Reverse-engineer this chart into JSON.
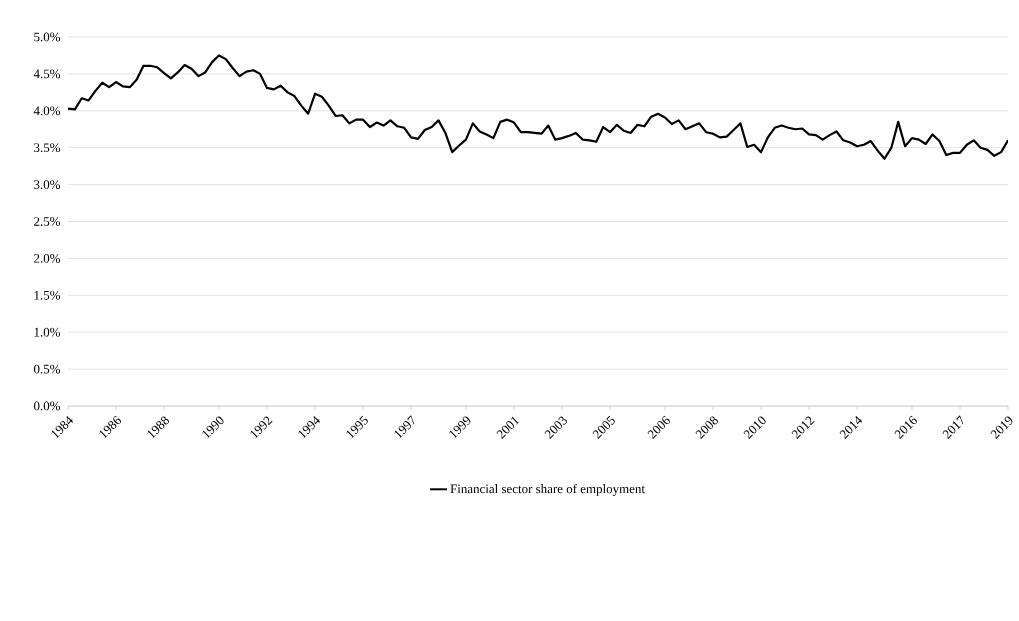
{
  "chart_data": {
    "type": "line",
    "categories": [
      "1984",
      null,
      null,
      null,
      null,
      null,
      null,
      "1986",
      null,
      null,
      null,
      null,
      null,
      null,
      "1988",
      null,
      null,
      null,
      null,
      null,
      null,
      null,
      "1990",
      null,
      null,
      null,
      null,
      null,
      null,
      "1992",
      null,
      null,
      null,
      null,
      null,
      null,
      "1994",
      null,
      null,
      null,
      null,
      null,
      null,
      "1995",
      null,
      null,
      null,
      null,
      null,
      null,
      "1997",
      null,
      null,
      null,
      null,
      null,
      null,
      null,
      "1999",
      null,
      null,
      null,
      null,
      null,
      null,
      "2001",
      null,
      null,
      null,
      null,
      null,
      null,
      "2003",
      null,
      null,
      null,
      null,
      null,
      null,
      "2005",
      null,
      null,
      null,
      null,
      null,
      null,
      null,
      "2006",
      null,
      null,
      null,
      null,
      null,
      null,
      "2008",
      null,
      null,
      null,
      null,
      null,
      null,
      "2010",
      null,
      null,
      null,
      null,
      null,
      null,
      "2012",
      null,
      null,
      null,
      null,
      null,
      null,
      "2014",
      null,
      null,
      null,
      null,
      null,
      null,
      null,
      "2016",
      null,
      null,
      null,
      null,
      null,
      null,
      "2017",
      null,
      null,
      null,
      null,
      null,
      null,
      "2019"
    ],
    "series": [
      {
        "name": "Financial sector share of employment",
        "color": "#000000",
        "values": [
          4.03,
          4.02,
          4.17,
          4.14,
          4.27,
          4.38,
          4.32,
          4.39,
          4.33,
          4.32,
          4.42,
          4.61,
          4.61,
          4.59,
          4.51,
          4.44,
          4.52,
          4.62,
          4.57,
          4.47,
          4.52,
          4.66,
          4.75,
          4.7,
          4.58,
          4.47,
          4.53,
          4.55,
          4.5,
          4.31,
          4.29,
          4.34,
          4.25,
          4.2,
          4.07,
          3.96,
          4.23,
          4.19,
          4.07,
          3.93,
          3.94,
          3.83,
          3.88,
          3.88,
          3.78,
          3.84,
          3.8,
          3.87,
          3.79,
          3.77,
          3.64,
          3.62,
          3.74,
          3.78,
          3.87,
          3.7,
          3.44,
          3.53,
          3.61,
          3.83,
          3.72,
          3.68,
          3.63,
          3.85,
          3.88,
          3.84,
          3.71,
          3.71,
          3.7,
          3.69,
          3.8,
          3.61,
          3.63,
          3.66,
          3.7,
          3.61,
          3.6,
          3.58,
          3.78,
          3.71,
          3.81,
          3.73,
          3.7,
          3.81,
          3.79,
          3.92,
          3.96,
          3.91,
          3.82,
          3.87,
          3.75,
          3.79,
          3.83,
          3.71,
          3.69,
          3.64,
          3.65,
          3.74,
          3.83,
          3.51,
          3.54,
          3.44,
          3.64,
          3.77,
          3.8,
          3.77,
          3.75,
          3.76,
          3.68,
          3.67,
          3.61,
          3.67,
          3.72,
          3.6,
          3.57,
          3.52,
          3.54,
          3.59,
          3.46,
          3.35,
          3.5,
          3.85,
          3.52,
          3.63,
          3.61,
          3.55,
          3.68,
          3.59,
          3.4,
          3.43,
          3.43,
          3.54,
          3.6,
          3.5,
          3.47,
          3.39,
          3.44,
          3.6
        ]
      }
    ],
    "ylim": [
      0,
      5
    ],
    "yticks": [
      {
        "value": 0,
        "label": "0.0%"
      },
      {
        "value": 0.5,
        "label": "0.5%"
      },
      {
        "value": 1,
        "label": "1.0%"
      },
      {
        "value": 1.5,
        "label": "1.5%"
      },
      {
        "value": 2,
        "label": "2.0%"
      },
      {
        "value": 2.5,
        "label": "2.5%"
      },
      {
        "value": 3,
        "label": "3.0%"
      },
      {
        "value": 3.5,
        "label": "3.5%"
      },
      {
        "value": 4,
        "label": "4.0%"
      },
      {
        "value": 4.5,
        "label": "4.5%"
      },
      {
        "value": 5,
        "label": "5.0%"
      }
    ],
    "grid": "y",
    "legend": "bottom",
    "marker": "none",
    "line_style": "solid"
  }
}
